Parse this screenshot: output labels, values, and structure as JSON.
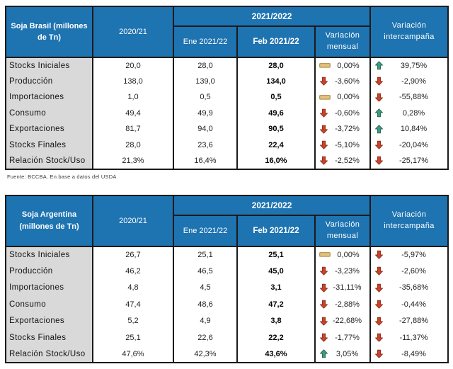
{
  "colors": {
    "header_blue": "#1E73B1",
    "label_gray": "#D9D9D9",
    "border": "#1A1A1A",
    "up_green": "#3E9B7D",
    "up_green_dark": "#25644F",
    "down_red": "#C8432A",
    "down_red_dark": "#8E2E1B",
    "flat_tan": "#E3C47D",
    "flat_tan_dark": "#AD8A46"
  },
  "icons": {
    "up": "up-arrow-icon",
    "down": "down-arrow-icon",
    "flat": "flat-bar-icon"
  },
  "tables": [
    {
      "title": "Soja Brasil (millones de Tn)",
      "headers": {
        "season_prev": "2020/21",
        "season_group": "2021/2022",
        "month_prev": "Ene 2021/22",
        "month_curr": "Feb 2021/22",
        "var_monthly": "Variación mensual",
        "var_season": "Variación intercampaña"
      },
      "rows": [
        {
          "label": "Stocks Iniciales",
          "prev": "20,0",
          "ene": "28,0",
          "feb": "28,0",
          "vm_icon": "flat",
          "vm": "0,00%",
          "vi_icon": "up",
          "vi": "39,75%"
        },
        {
          "label": "Producción",
          "prev": "138,0",
          "ene": "139,0",
          "feb": "134,0",
          "vm_icon": "down",
          "vm": "-3,60%",
          "vi_icon": "down",
          "vi": "-2,90%"
        },
        {
          "label": "Importaciones",
          "prev": "1,0",
          "ene": "0,5",
          "feb": "0,5",
          "vm_icon": "flat",
          "vm": "0,00%",
          "vi_icon": "down",
          "vi": "-55,88%"
        },
        {
          "label": "Consumo",
          "prev": "49,4",
          "ene": "49,9",
          "feb": "49,6",
          "vm_icon": "down",
          "vm": "-0,60%",
          "vi_icon": "up",
          "vi": "0,28%"
        },
        {
          "label": "Exportaciones",
          "prev": "81,7",
          "ene": "94,0",
          "feb": "90,5",
          "vm_icon": "down",
          "vm": "-3,72%",
          "vi_icon": "up",
          "vi": "10,84%"
        },
        {
          "label": "Stocks Finales",
          "prev": "28,0",
          "ene": "23,6",
          "feb": "22,4",
          "vm_icon": "down",
          "vm": "-5,10%",
          "vi_icon": "down",
          "vi": "-20,04%"
        },
        {
          "label": "Relación Stock/Uso",
          "prev": "21,3%",
          "ene": "16,4%",
          "feb": "16,0%",
          "vm_icon": "down",
          "vm": "-2,52%",
          "vi_icon": "down",
          "vi": "-25,17%"
        }
      ],
      "source": "Fuente: BCCBA. En base a datos del USDA"
    },
    {
      "title": "Soja Argentina (millones de Tn)",
      "headers": {
        "season_prev": "2020/21",
        "season_group": "2021/2022",
        "month_prev": "Ene 2021/22",
        "month_curr": "Feb 2021/22",
        "var_monthly": "Variación mensual",
        "var_season": "Variación intercampaña"
      },
      "rows": [
        {
          "label": "Stocks Iniciales",
          "prev": "26,7",
          "ene": "25,1",
          "feb": "25,1",
          "vm_icon": "flat",
          "vm": "0,00%",
          "vi_icon": "down",
          "vi": "-5,97%"
        },
        {
          "label": "Producción",
          "prev": "46,2",
          "ene": "46,5",
          "feb": "45,0",
          "vm_icon": "down",
          "vm": "-3,23%",
          "vi_icon": "down",
          "vi": "-2,60%"
        },
        {
          "label": "Importaciones",
          "prev": "4,8",
          "ene": "4,5",
          "feb": "3,1",
          "vm_icon": "down",
          "vm": "-31,11%",
          "vi_icon": "down",
          "vi": "-35,68%"
        },
        {
          "label": "Consumo",
          "prev": "47,4",
          "ene": "48,6",
          "feb": "47,2",
          "vm_icon": "down",
          "vm": "-2,88%",
          "vi_icon": "down",
          "vi": "-0,44%"
        },
        {
          "label": "Exportaciones",
          "prev": "5,2",
          "ene": "4,9",
          "feb": "3,8",
          "vm_icon": "down",
          "vm": "-22,68%",
          "vi_icon": "down",
          "vi": "-27,88%"
        },
        {
          "label": "Stocks Finales",
          "prev": "25,1",
          "ene": "22,6",
          "feb": "22,2",
          "vm_icon": "down",
          "vm": "-1,77%",
          "vi_icon": "down",
          "vi": "-11,37%"
        },
        {
          "label": "Relación Stock/Uso",
          "prev": "47,6%",
          "ene": "42,3%",
          "feb": "43,6%",
          "vm_icon": "up",
          "vm": "3,05%",
          "vi_icon": "down",
          "vi": "-8,49%"
        }
      ],
      "source": ""
    }
  ]
}
